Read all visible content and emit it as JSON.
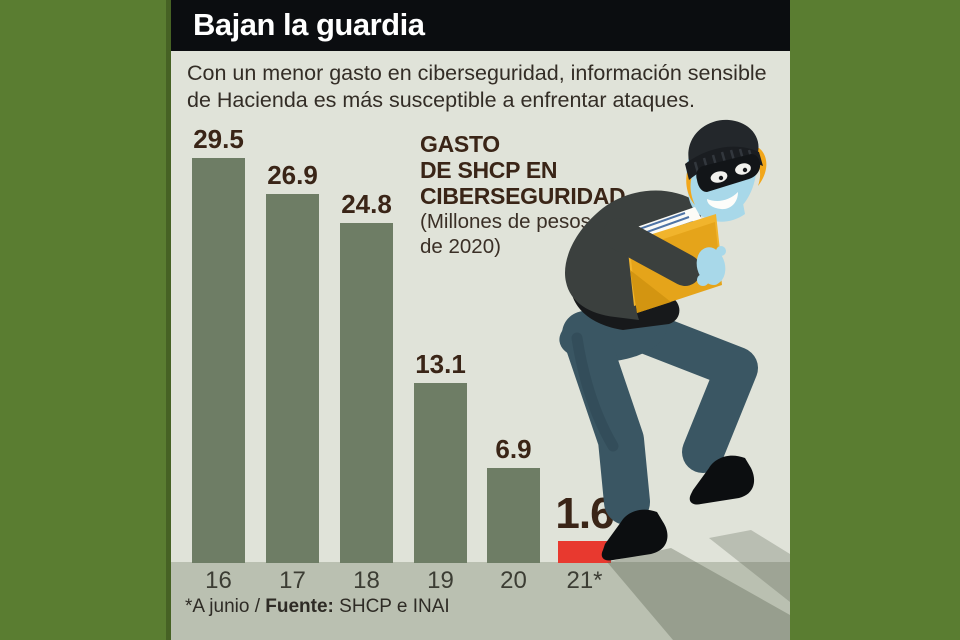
{
  "header": {
    "title": "Bajan la guardia"
  },
  "intro": {
    "lines": [
      "Con un menor gasto en ciberseguridad, información sensible",
      "de Hacienda es más susceptible a enfrentar ataques."
    ]
  },
  "chart_data": {
    "type": "bar",
    "title": "GASTO DE SHCP EN CIBERSEGURIDAD",
    "title_lines": [
      "GASTO",
      "DE SHCP EN",
      "CIBERSEGURIDAD"
    ],
    "unit_lines": [
      "(Millones de pesos",
      "de 2020)"
    ],
    "categories": [
      "16",
      "17",
      "18",
      "19",
      "20",
      "21*"
    ],
    "values": [
      29.5,
      26.9,
      24.8,
      13.1,
      6.9,
      1.6
    ],
    "highlight_index": 5,
    "bar_color": "#6e7d65",
    "highlight_color": "#e8392f",
    "ylim": [
      0,
      30
    ],
    "grid": false,
    "value_labels": true,
    "legend": "none"
  },
  "footnote": {
    "note": "*A junio / ",
    "source_label": "Fuente:",
    "source_text": " SHCP e INAI"
  },
  "illustration": {
    "name": "burglar-carrying-stolen-files"
  },
  "colors": {
    "frame": "#5a7d31",
    "panel": "#e0e3d9",
    "axis_band": "#bac0b1",
    "header_bg": "#0b0d10",
    "header_text": "#ffffff",
    "value_text": "#3a2517",
    "axis_text": "#3c3d34",
    "body_text": "#332d26"
  }
}
